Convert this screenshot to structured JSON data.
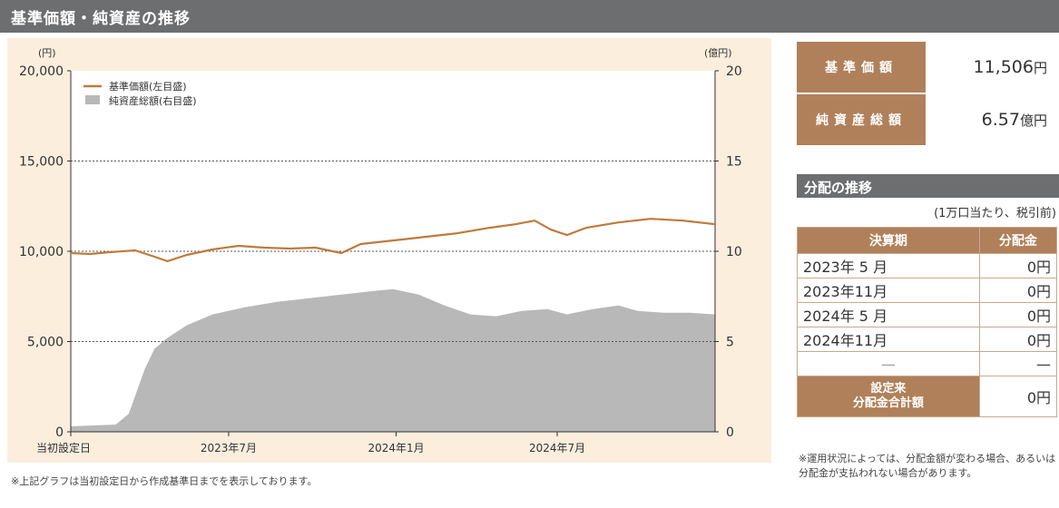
{
  "header": {
    "title": "基準価額・純資産の推移"
  },
  "chart_data": {
    "type": "line",
    "left_axis": {
      "unit": "(円)",
      "ticks": [
        "0",
        "5,000",
        "10,000",
        "15,000",
        "20,000"
      ],
      "range": [
        0,
        20000
      ]
    },
    "right_axis": {
      "unit": "(億円)",
      "ticks": [
        "0",
        "5",
        "10",
        "15",
        "20"
      ],
      "range": [
        0,
        20
      ]
    },
    "x_ticks": [
      {
        "label": "当初設定日",
        "x": 0
      },
      {
        "label": "2023年7月",
        "x": 0.245
      },
      {
        "label": "2024年1月",
        "x": 0.505
      },
      {
        "label": "2024年7月",
        "x": 0.755
      }
    ],
    "legend": [
      "基準価額(左目盛)",
      "純資産総額(右目盛)"
    ],
    "grid": true,
    "nav_series": {
      "name": "基準価額(左目盛)",
      "color": "#c07a3c",
      "points": [
        [
          0,
          9900
        ],
        [
          0.03,
          9850
        ],
        [
          0.06,
          9950
        ],
        [
          0.1,
          10050
        ],
        [
          0.13,
          9700
        ],
        [
          0.15,
          9450
        ],
        [
          0.18,
          9800
        ],
        [
          0.22,
          10100
        ],
        [
          0.26,
          10300
        ],
        [
          0.3,
          10200
        ],
        [
          0.34,
          10150
        ],
        [
          0.38,
          10200
        ],
        [
          0.42,
          9900
        ],
        [
          0.45,
          10400
        ],
        [
          0.5,
          10600
        ],
        [
          0.55,
          10800
        ],
        [
          0.6,
          11000
        ],
        [
          0.65,
          11300
        ],
        [
          0.69,
          11500
        ],
        [
          0.72,
          11700
        ],
        [
          0.745,
          11200
        ],
        [
          0.77,
          10900
        ],
        [
          0.8,
          11300
        ],
        [
          0.85,
          11600
        ],
        [
          0.9,
          11800
        ],
        [
          0.95,
          11700
        ],
        [
          1,
          11500
        ]
      ]
    },
    "aum_series": {
      "name": "純資産総額(右目盛)",
      "color": "#b8b8b8",
      "points": [
        [
          0,
          0.3
        ],
        [
          0.07,
          0.4
        ],
        [
          0.09,
          1.0
        ],
        [
          0.1,
          2.0
        ],
        [
          0.115,
          3.5
        ],
        [
          0.13,
          4.6
        ],
        [
          0.15,
          5.2
        ],
        [
          0.18,
          5.9
        ],
        [
          0.22,
          6.5
        ],
        [
          0.27,
          6.9
        ],
        [
          0.32,
          7.2
        ],
        [
          0.37,
          7.4
        ],
        [
          0.42,
          7.6
        ],
        [
          0.47,
          7.8
        ],
        [
          0.5,
          7.9
        ],
        [
          0.54,
          7.6
        ],
        [
          0.58,
          7.0
        ],
        [
          0.62,
          6.5
        ],
        [
          0.66,
          6.4
        ],
        [
          0.7,
          6.7
        ],
        [
          0.74,
          6.8
        ],
        [
          0.77,
          6.5
        ],
        [
          0.81,
          6.8
        ],
        [
          0.85,
          7.0
        ],
        [
          0.88,
          6.7
        ],
        [
          0.92,
          6.6
        ],
        [
          0.96,
          6.6
        ],
        [
          1,
          6.5
        ]
      ]
    }
  },
  "footnote_left": "※上記グラフは当初設定日から作成基準日までを表示しております。",
  "summary": [
    {
      "label": "基準価額",
      "value": "11,506",
      "unit": "円"
    },
    {
      "label": "純資産総額",
      "value": "6.57",
      "unit": "億円"
    }
  ],
  "distribution": {
    "title": "分配の推移",
    "note": "(1万口当たり、税引前)",
    "col_period": "決算期",
    "col_amount": "分配金",
    "rows": [
      {
        "period": "2023年 5 月",
        "amount": "0円"
      },
      {
        "period": "2023年11月",
        "amount": "0円"
      },
      {
        "period": "2024年 5 月",
        "amount": "0円"
      },
      {
        "period": "2024年11月",
        "amount": "0円"
      },
      {
        "period": "—",
        "amount": "—"
      }
    ],
    "total_label_1": "設定来",
    "total_label_2": "分配金合計額",
    "total_amount": "0円"
  },
  "footnote_right": "※運用状況によっては、分配金額が変わる場合、あるいは分配金が支払われない場合があります。"
}
